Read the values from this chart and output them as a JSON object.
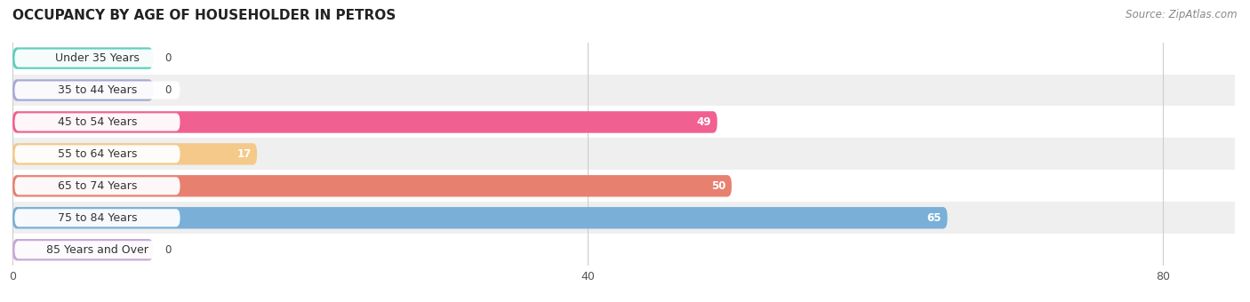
{
  "title": "OCCUPANCY BY AGE OF HOUSEHOLDER IN PETROS",
  "source": "Source: ZipAtlas.com",
  "categories": [
    "Under 35 Years",
    "35 to 44 Years",
    "45 to 54 Years",
    "55 to 64 Years",
    "65 to 74 Years",
    "75 to 84 Years",
    "85 Years and Over"
  ],
  "values": [
    0,
    0,
    49,
    17,
    50,
    65,
    0
  ],
  "bar_colors": [
    "#5ecfbf",
    "#a8a8d8",
    "#f06090",
    "#f5c98a",
    "#e88070",
    "#7ab0d8",
    "#c8a8d8"
  ],
  "bar_height": 0.68,
  "xlim": [
    0,
    85
  ],
  "xticks": [
    0,
    40,
    80
  ],
  "title_fontsize": 11,
  "label_fontsize": 9,
  "value_fontsize": 8.5,
  "source_fontsize": 8.5
}
